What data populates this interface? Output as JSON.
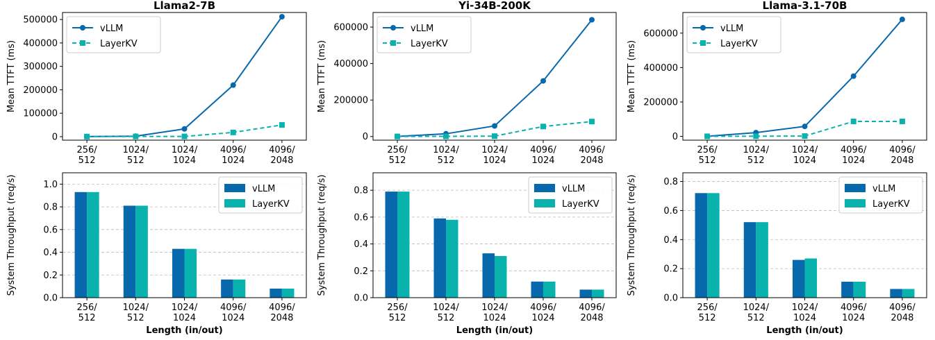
{
  "colors": {
    "vllm": "#0868ac",
    "layerkv": "#0ab2ae",
    "grid": "#bbbbbb"
  },
  "chart_data": [
    {
      "type": "line",
      "title": "Llama2-7B",
      "ylabel": "Mean TTFT (ms)",
      "xlabel": "",
      "categories": [
        [
          "256/",
          "512"
        ],
        [
          "1024/",
          "512"
        ],
        [
          "1024/",
          "1024"
        ],
        [
          "4096/",
          "1024"
        ],
        [
          "4096/",
          "2048"
        ]
      ],
      "ylim": [
        -15000,
        530000
      ],
      "yticks": [
        0,
        100000,
        200000,
        300000,
        400000,
        500000
      ],
      "yticklabels": [
        "0",
        "100000",
        "200000",
        "300000",
        "400000",
        "500000"
      ],
      "legend": "top-left",
      "grid": false,
      "series": [
        {
          "name": "vLLM",
          "values": [
            500,
            2000,
            33000,
            220000,
            512000
          ]
        },
        {
          "name": "LayerKV",
          "values": [
            300,
            800,
            1000,
            18000,
            50000
          ]
        }
      ]
    },
    {
      "type": "line",
      "title": "Yi-34B-200K",
      "ylabel": "Mean TTFT (ms)",
      "xlabel": "",
      "categories": [
        [
          "256/",
          "512"
        ],
        [
          "1024/",
          "512"
        ],
        [
          "1024/",
          "1024"
        ],
        [
          "4096/",
          "1024"
        ],
        [
          "4096/",
          "2048"
        ]
      ],
      "ylim": [
        -20000,
        680000
      ],
      "yticks": [
        0,
        200000,
        400000,
        600000
      ],
      "yticklabels": [
        "0",
        "200000",
        "400000",
        "600000"
      ],
      "legend": "top-left",
      "grid": false,
      "series": [
        {
          "name": "vLLM",
          "values": [
            500,
            15000,
            58000,
            305000,
            640000
          ]
        },
        {
          "name": "LayerKV",
          "values": [
            300,
            1000,
            2000,
            55000,
            82000
          ]
        }
      ]
    },
    {
      "type": "line",
      "title": "Llama-3.1-70B",
      "ylabel": "Mean TTFT (ms)",
      "xlabel": "",
      "categories": [
        [
          "256/",
          "512"
        ],
        [
          "1024/",
          "512"
        ],
        [
          "1024/",
          "1024"
        ],
        [
          "4096/",
          "1024"
        ],
        [
          "4096/",
          "2048"
        ]
      ],
      "ylim": [
        -22000,
        720000
      ],
      "yticks": [
        0,
        200000,
        400000,
        600000
      ],
      "yticklabels": [
        "0",
        "200000",
        "400000",
        "600000"
      ],
      "legend": "top-left",
      "grid": false,
      "series": [
        {
          "name": "vLLM",
          "values": [
            500,
            22000,
            58000,
            350000,
            680000
          ]
        },
        {
          "name": "LayerKV",
          "values": [
            300,
            1000,
            2000,
            87000,
            87000
          ]
        }
      ]
    },
    {
      "type": "bar",
      "title": "",
      "ylabel": "System Throughput (req/s)",
      "xlabel": "Length (in/out)",
      "categories": [
        [
          "256/",
          "512"
        ],
        [
          "1024/",
          "512"
        ],
        [
          "1024/",
          "1024"
        ],
        [
          "4096/",
          "1024"
        ],
        [
          "4096/",
          "2048"
        ]
      ],
      "ylim": [
        0,
        1.1
      ],
      "yticks": [
        0,
        0.2,
        0.4,
        0.6,
        0.8,
        1.0
      ],
      "yticklabels": [
        "0.0",
        "0.2",
        "0.4",
        "0.6",
        "0.8",
        "1.0"
      ],
      "legend": "top-right",
      "grid": true,
      "series": [
        {
          "name": "vLLM",
          "values": [
            0.93,
            0.81,
            0.43,
            0.16,
            0.08
          ]
        },
        {
          "name": "LayerKV",
          "values": [
            0.93,
            0.81,
            0.43,
            0.16,
            0.08
          ]
        }
      ]
    },
    {
      "type": "bar",
      "title": "",
      "ylabel": "System Throughput (req/s)",
      "xlabel": "Length (in/out)",
      "categories": [
        [
          "256/",
          "512"
        ],
        [
          "1024/",
          "512"
        ],
        [
          "1024/",
          "1024"
        ],
        [
          "4096/",
          "1024"
        ],
        [
          "4096/",
          "2048"
        ]
      ],
      "ylim": [
        0,
        0.93
      ],
      "yticks": [
        0,
        0.2,
        0.4,
        0.6,
        0.8
      ],
      "yticklabels": [
        "0.0",
        "0.2",
        "0.4",
        "0.6",
        "0.8"
      ],
      "legend": "top-right",
      "grid": true,
      "series": [
        {
          "name": "vLLM",
          "values": [
            0.79,
            0.59,
            0.33,
            0.12,
            0.06
          ]
        },
        {
          "name": "LayerKV",
          "values": [
            0.79,
            0.58,
            0.31,
            0.12,
            0.06
          ]
        }
      ]
    },
    {
      "type": "bar",
      "title": "",
      "ylabel": "System Throughput (req/s)",
      "xlabel": "Length (in/out)",
      "categories": [
        [
          "256/",
          "512"
        ],
        [
          "1024/",
          "512"
        ],
        [
          "1024/",
          "1024"
        ],
        [
          "4096/",
          "1024"
        ],
        [
          "4096/",
          "2048"
        ]
      ],
      "ylim": [
        0,
        0.86
      ],
      "yticks": [
        0,
        0.2,
        0.4,
        0.6,
        0.8
      ],
      "yticklabels": [
        "0.0",
        "0.2",
        "0.4",
        "0.6",
        "0.8"
      ],
      "legend": "top-right",
      "grid": true,
      "series": [
        {
          "name": "vLLM",
          "values": [
            0.72,
            0.52,
            0.26,
            0.11,
            0.06
          ]
        },
        {
          "name": "LayerKV",
          "values": [
            0.72,
            0.52,
            0.27,
            0.11,
            0.06
          ]
        }
      ]
    }
  ]
}
